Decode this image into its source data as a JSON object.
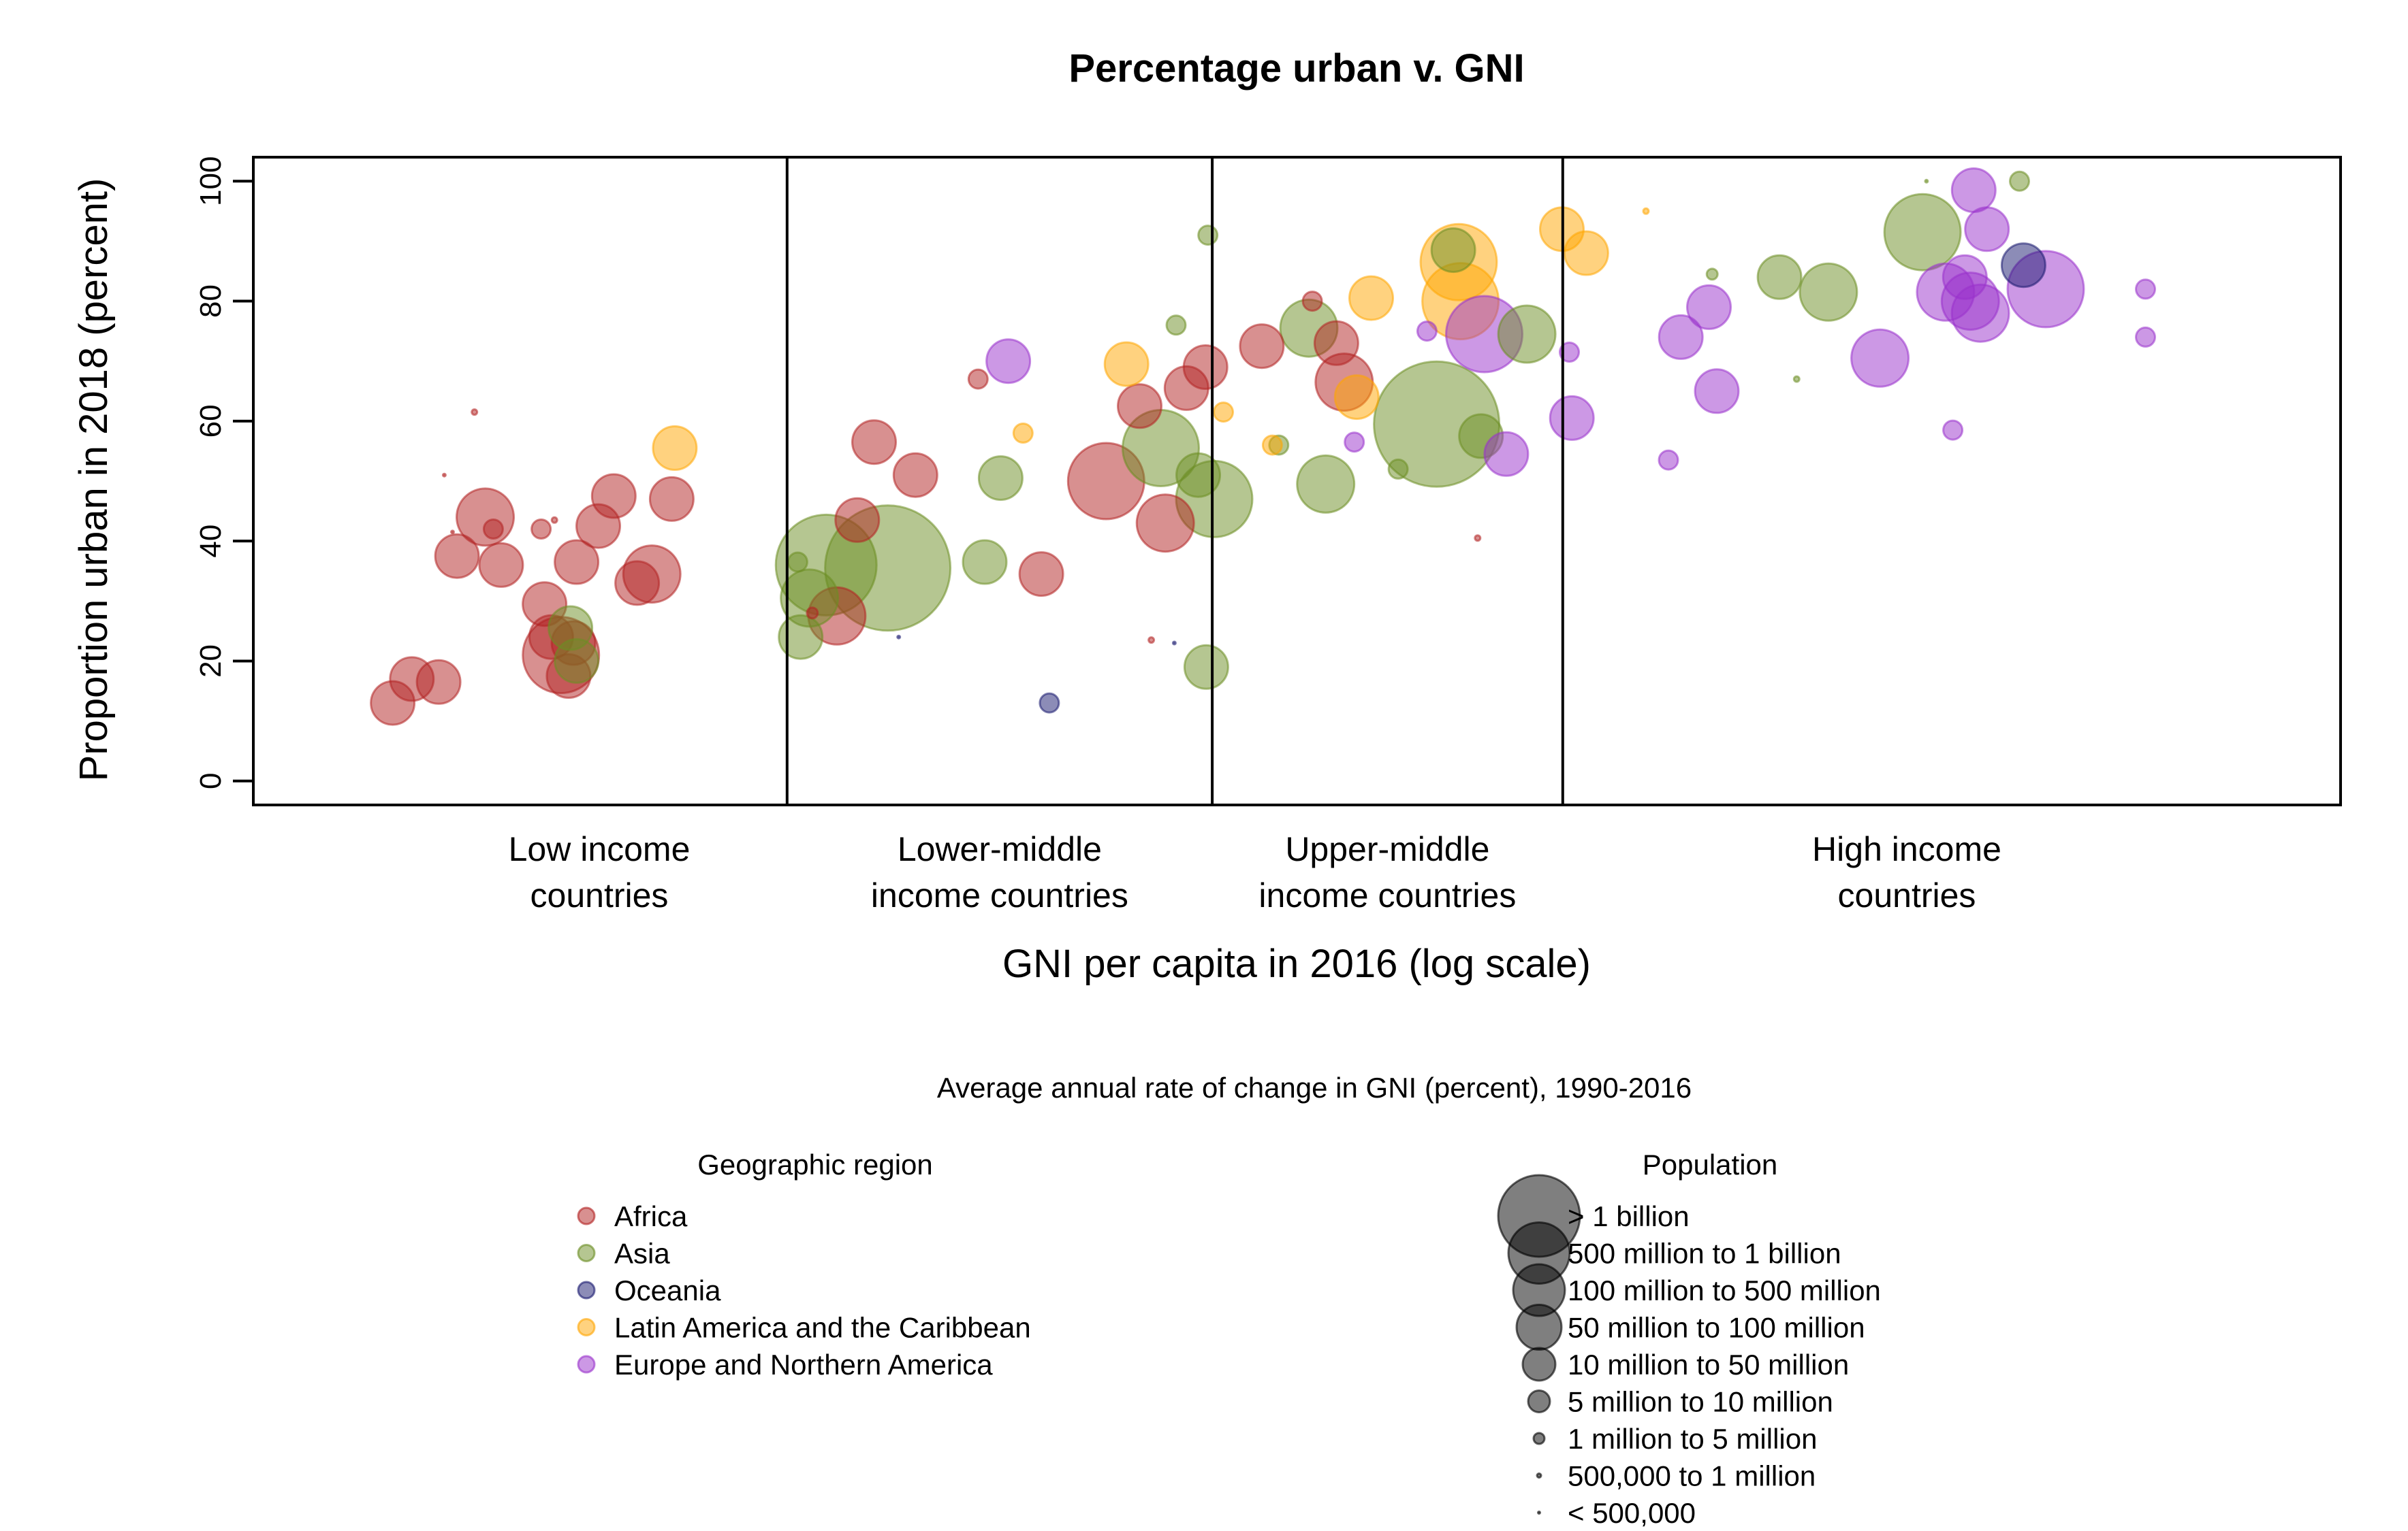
{
  "chart_data": {
    "type": "scatter",
    "title": "Percentage urban v. GNI",
    "xlabel": "GNI per capita in 2016 (log scale)",
    "ylabel": "Proportion urban in 2018 (percent)",
    "x_scale": "log",
    "x_categories": [
      "Low income\ncountries",
      "Lower-middle\nincome countries",
      "Upper-middle\nincome countries",
      "High income\ncountries"
    ],
    "x_category_bounds_usd": [
      1005,
      3955,
      12235
    ],
    "xlim_usd": [
      180,
      150000
    ],
    "ylim": [
      -4,
      104
    ],
    "yticks": [
      0,
      20,
      40,
      60,
      80,
      100
    ],
    "note": "Average annual rate of change in GNI (percent), 1990-2016",
    "legend_region_title": "Geographic region",
    "legend_population_title": "Population",
    "regions": [
      {
        "name": "Africa",
        "color": "#B22222"
      },
      {
        "name": "Asia",
        "color": "#6B8E23"
      },
      {
        "name": "Oceania",
        "color": "#191970"
      },
      {
        "name": "Latin America and the Caribbean",
        "color": "#FFA500"
      },
      {
        "name": "Europe and Northern America",
        "color": "#9932CC"
      }
    ],
    "population_classes": [
      {
        "label": "> 1 billion",
        "size_class": 9
      },
      {
        "label": "500 million to 1 billion",
        "size_class": 8
      },
      {
        "label": "100 million to 500 million",
        "size_class": 7
      },
      {
        "label": "50 million to 100 million",
        "size_class": 6
      },
      {
        "label": "10 million to 50 million",
        "size_class": 5
      },
      {
        "label": "5 million to 10 million",
        "size_class": 4
      },
      {
        "label": "1 million to 5 million",
        "size_class": 3
      },
      {
        "label": "500,000 to 1 million",
        "size_class": 2
      },
      {
        "label": "< 500,000",
        "size_class": 1
      }
    ],
    "points": [
      {
        "region": "Africa",
        "gni": 282,
        "urban": 13,
        "pop": 5
      },
      {
        "region": "Africa",
        "gni": 300,
        "urban": 17,
        "pop": 5
      },
      {
        "region": "Africa",
        "gni": 327,
        "urban": 16.5,
        "pop": 5
      },
      {
        "region": "Africa",
        "gni": 333,
        "urban": 51,
        "pop": 1
      },
      {
        "region": "Africa",
        "gni": 342,
        "urban": 41.5,
        "pop": 1
      },
      {
        "region": "Africa",
        "gni": 347,
        "urban": 37.5,
        "pop": 5
      },
      {
        "region": "Africa",
        "gni": 367,
        "urban": 61.5,
        "pop": 2
      },
      {
        "region": "Africa",
        "gni": 380,
        "urban": 44,
        "pop": 6
      },
      {
        "region": "Africa",
        "gni": 390,
        "urban": 42,
        "pop": 4
      },
      {
        "region": "Africa",
        "gni": 400,
        "urban": 36,
        "pop": 5
      },
      {
        "region": "Africa",
        "gni": 455,
        "urban": 42,
        "pop": 4
      },
      {
        "region": "Africa",
        "gni": 460,
        "urban": 29.5,
        "pop": 5
      },
      {
        "region": "Africa",
        "gni": 470,
        "urban": 24,
        "pop": 5
      },
      {
        "region": "Africa",
        "gni": 475,
        "urban": 43.5,
        "pop": 2
      },
      {
        "region": "Africa",
        "gni": 485,
        "urban": 21,
        "pop": 7
      },
      {
        "region": "Africa",
        "gni": 497,
        "urban": 17.5,
        "pop": 5
      },
      {
        "region": "Africa",
        "gni": 505,
        "urban": 23,
        "pop": 5
      },
      {
        "region": "Africa",
        "gni": 510,
        "urban": 36.5,
        "pop": 5
      },
      {
        "region": "Africa",
        "gni": 547,
        "urban": 42.5,
        "pop": 5
      },
      {
        "region": "Africa",
        "gni": 575,
        "urban": 47.5,
        "pop": 5
      },
      {
        "region": "Africa",
        "gni": 620,
        "urban": 33,
        "pop": 5
      },
      {
        "region": "Africa",
        "gni": 650,
        "urban": 34.5,
        "pop": 6
      },
      {
        "region": "Africa",
        "gni": 693,
        "urban": 47,
        "pop": 5
      },
      {
        "region": "Africa",
        "gni": 1090,
        "urban": 28,
        "pop": 3
      },
      {
        "region": "Africa",
        "gni": 1180,
        "urban": 27.5,
        "pop": 6
      },
      {
        "region": "Africa",
        "gni": 1260,
        "urban": 43.5,
        "pop": 5
      },
      {
        "region": "Africa",
        "gni": 1330,
        "urban": 56.5,
        "pop": 5
      },
      {
        "region": "Africa",
        "gni": 1520,
        "urban": 51,
        "pop": 5
      },
      {
        "region": "Africa",
        "gni": 1860,
        "urban": 67,
        "pop": 4
      },
      {
        "region": "Africa",
        "gni": 2280,
        "urban": 34.5,
        "pop": 5
      },
      {
        "region": "Africa",
        "gni": 2810,
        "urban": 50,
        "pop": 7
      },
      {
        "region": "Africa",
        "gni": 3250,
        "urban": 23.5,
        "pop": 2
      },
      {
        "region": "Africa",
        "gni": 3130,
        "urban": 62.5,
        "pop": 5
      },
      {
        "region": "Africa",
        "gni": 3400,
        "urban": 43,
        "pop": 6
      },
      {
        "region": "Africa",
        "gni": 3640,
        "urban": 65.5,
        "pop": 5
      },
      {
        "region": "Africa",
        "gni": 3870,
        "urban": 69,
        "pop": 5
      },
      {
        "region": "Africa",
        "gni": 4640,
        "urban": 72.5,
        "pop": 5
      },
      {
        "region": "Africa",
        "gni": 5460,
        "urban": 80,
        "pop": 4
      },
      {
        "region": "Africa",
        "gni": 6050,
        "urban": 66.5,
        "pop": 6
      },
      {
        "region": "Africa",
        "gni": 5900,
        "urban": 73,
        "pop": 5
      },
      {
        "region": "Africa",
        "gni": 9300,
        "urban": 40.5,
        "pop": 2
      },
      {
        "region": "Asia",
        "gni": 500,
        "urban": 25.5,
        "pop": 5
      },
      {
        "region": "Asia",
        "gni": 510,
        "urban": 20,
        "pop": 5
      },
      {
        "region": "Asia",
        "gni": 1040,
        "urban": 36.5,
        "pop": 4
      },
      {
        "region": "Asia",
        "gni": 1050,
        "urban": 24,
        "pop": 5
      },
      {
        "region": "Asia",
        "gni": 1080,
        "urban": 30.5,
        "pop": 6
      },
      {
        "region": "Asia",
        "gni": 1140,
        "urban": 36,
        "pop": 8
      },
      {
        "region": "Asia",
        "gni": 1390,
        "urban": 35.5,
        "pop": 9
      },
      {
        "region": "Asia",
        "gni": 1900,
        "urban": 36.5,
        "pop": 5
      },
      {
        "region": "Asia",
        "gni": 2000,
        "urban": 50.5,
        "pop": 5
      },
      {
        "region": "Asia",
        "gni": 3350,
        "urban": 55.5,
        "pop": 7
      },
      {
        "region": "Asia",
        "gni": 3520,
        "urban": 76,
        "pop": 4
      },
      {
        "region": "Asia",
        "gni": 3780,
        "urban": 51,
        "pop": 5
      },
      {
        "region": "Asia",
        "gni": 3900,
        "urban": 91,
        "pop": 4
      },
      {
        "region": "Asia",
        "gni": 3980,
        "urban": 47,
        "pop": 7
      },
      {
        "region": "Asia",
        "gni": 3880,
        "urban": 19,
        "pop": 5
      },
      {
        "region": "Asia",
        "gni": 4900,
        "urban": 56,
        "pop": 4
      },
      {
        "region": "Asia",
        "gni": 5400,
        "urban": 75.5,
        "pop": 6
      },
      {
        "region": "Asia",
        "gni": 5700,
        "urban": 49.5,
        "pop": 6
      },
      {
        "region": "Asia",
        "gni": 7200,
        "urban": 52,
        "pop": 4
      },
      {
        "region": "Asia",
        "gni": 8150,
        "urban": 59.5,
        "pop": 9
      },
      {
        "region": "Asia",
        "gni": 8600,
        "urban": 88.5,
        "pop": 5
      },
      {
        "region": "Asia",
        "gni": 9400,
        "urban": 57.5,
        "pop": 5
      },
      {
        "region": "Asia",
        "gni": 10900,
        "urban": 74.5,
        "pop": 6
      },
      {
        "region": "Asia",
        "gni": 19800,
        "urban": 84.5,
        "pop": 3
      },
      {
        "region": "Asia",
        "gni": 24600,
        "urban": 84,
        "pop": 5
      },
      {
        "region": "Asia",
        "gni": 26000,
        "urban": 67,
        "pop": 2
      },
      {
        "region": "Asia",
        "gni": 28800,
        "urban": 81.5,
        "pop": 6
      },
      {
        "region": "Asia",
        "gni": 39000,
        "urban": 91.5,
        "pop": 7
      },
      {
        "region": "Asia",
        "gni": 39500,
        "urban": 100,
        "pop": 1
      },
      {
        "region": "Asia",
        "gni": 53300,
        "urban": 100,
        "pop": 4
      },
      {
        "region": "Oceania",
        "gni": 2340,
        "urban": 13,
        "pop": 4
      },
      {
        "region": "Oceania",
        "gni": 1440,
        "urban": 24,
        "pop": 1
      },
      {
        "region": "Oceania",
        "gni": 3500,
        "urban": 23,
        "pop": 1
      },
      {
        "region": "Oceania",
        "gni": 54000,
        "urban": 86,
        "pop": 5
      },
      {
        "region": "Latin America and the Caribbean",
        "gni": 700,
        "urban": 55.5,
        "pop": 5
      },
      {
        "region": "Latin America and the Caribbean",
        "gni": 2150,
        "urban": 58,
        "pop": 4
      },
      {
        "region": "Latin America and the Caribbean",
        "gni": 3000,
        "urban": 69.5,
        "pop": 5
      },
      {
        "region": "Latin America and the Caribbean",
        "gni": 4100,
        "urban": 61.5,
        "pop": 4
      },
      {
        "region": "Latin America and the Caribbean",
        "gni": 4800,
        "urban": 56,
        "pop": 4
      },
      {
        "region": "Latin America and the Caribbean",
        "gni": 6300,
        "urban": 64,
        "pop": 5
      },
      {
        "region": "Latin America and the Caribbean",
        "gni": 6600,
        "urban": 80.5,
        "pop": 5
      },
      {
        "region": "Latin America and the Caribbean",
        "gni": 8750,
        "urban": 86.5,
        "pop": 7
      },
      {
        "region": "Latin America and the Caribbean",
        "gni": 8800,
        "urban": 80,
        "pop": 7
      },
      {
        "region": "Latin America and the Caribbean",
        "gni": 12200,
        "urban": 92,
        "pop": 5
      },
      {
        "region": "Latin America and the Caribbean",
        "gni": 13200,
        "urban": 88,
        "pop": 5
      },
      {
        "region": "Latin America and the Caribbean",
        "gni": 16000,
        "urban": 95,
        "pop": 2
      },
      {
        "region": "Europe and Northern America",
        "gni": 2050,
        "urban": 70,
        "pop": 5
      },
      {
        "region": "Europe and Northern America",
        "gni": 6250,
        "urban": 56.5,
        "pop": 4
      },
      {
        "region": "Europe and Northern America",
        "gni": 7900,
        "urban": 75,
        "pop": 4
      },
      {
        "region": "Europe and Northern America",
        "gni": 9500,
        "urban": 74.5,
        "pop": 7
      },
      {
        "region": "Europe and Northern America",
        "gni": 10200,
        "urban": 54.5,
        "pop": 5
      },
      {
        "region": "Europe and Northern America",
        "gni": 12500,
        "urban": 71.5,
        "pop": 4
      },
      {
        "region": "Europe and Northern America",
        "gni": 12600,
        "urban": 60.5,
        "pop": 5
      },
      {
        "region": "Europe and Northern America",
        "gni": 17200,
        "urban": 53.5,
        "pop": 4
      },
      {
        "region": "Europe and Northern America",
        "gni": 17900,
        "urban": 74,
        "pop": 5
      },
      {
        "region": "Europe and Northern America",
        "gni": 19600,
        "urban": 79,
        "pop": 5
      },
      {
        "region": "Europe and Northern America",
        "gni": 20100,
        "urban": 65,
        "pop": 5
      },
      {
        "region": "Europe and Northern America",
        "gni": 34000,
        "urban": 70.5,
        "pop": 6
      },
      {
        "region": "Europe and Northern America",
        "gni": 42000,
        "urban": 81.5,
        "pop": 6
      },
      {
        "region": "Europe and Northern America",
        "gni": 43000,
        "urban": 58.5,
        "pop": 4
      },
      {
        "region": "Europe and Northern America",
        "gni": 44700,
        "urban": 84,
        "pop": 5
      },
      {
        "region": "Europe and Northern America",
        "gni": 45500,
        "urban": 80,
        "pop": 6
      },
      {
        "region": "Europe and Northern America",
        "gni": 46000,
        "urban": 98.5,
        "pop": 5
      },
      {
        "region": "Europe and Northern America",
        "gni": 47000,
        "urban": 78,
        "pop": 6
      },
      {
        "region": "Europe and Northern America",
        "gni": 48000,
        "urban": 92,
        "pop": 5
      },
      {
        "region": "Europe and Northern America",
        "gni": 58000,
        "urban": 82,
        "pop": 7
      },
      {
        "region": "Europe and Northern America",
        "gni": 80000,
        "urban": 82,
        "pop": 4
      },
      {
        "region": "Europe and Northern America",
        "gni": 80000,
        "urban": 74,
        "pop": 4
      }
    ]
  }
}
